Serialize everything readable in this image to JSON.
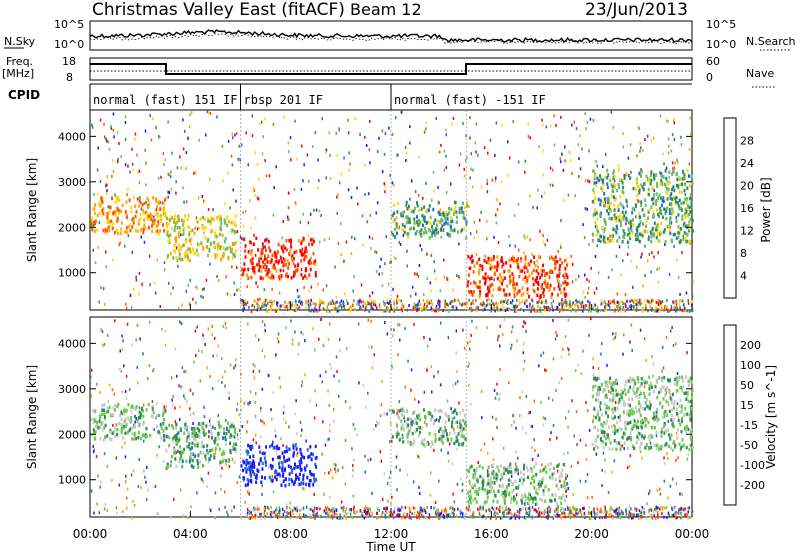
{
  "header": {
    "title": "Christmas Valley East (fitACF)",
    "beam": "Beam 12",
    "date": "23/Jun/2013"
  },
  "panels": {
    "nsky_label": "N.Sky",
    "nsearch_label": "N.Search",
    "nsky_ticks": [
      "10^5",
      "10^0"
    ],
    "nsearch_ticks": [
      "10^5",
      "10^0"
    ],
    "freq_label_1": "Freq.",
    "freq_label_2": "[MHz]",
    "freq_ticks": [
      "18",
      "8"
    ],
    "nave_label": "Nave",
    "nave_ticks": [
      "60",
      "0"
    ],
    "cpid_label": "CPID",
    "cpid_segments": [
      {
        "label": "normal (fast) 151 IF",
        "start": 0,
        "end": 6
      },
      {
        "label": "rbsp 201 IF",
        "start": 6,
        "end": 12
      },
      {
        "label": "normal (fast) -151 IF",
        "start": 12,
        "end": 24
      }
    ]
  },
  "chart_data": [
    {
      "type": "heatmap",
      "name": "power",
      "ylabel": "Slant Range [km]",
      "ylim": [
        180,
        4580
      ],
      "yticks": [
        "1000",
        "2000",
        "3000",
        "4000"
      ],
      "colorbar_label": "Power [dB]",
      "colorbar_ticks": [
        "28",
        "24",
        "20",
        "16",
        "12",
        "8",
        "4"
      ],
      "colors": [
        "#1a1aff",
        "#2266dd",
        "#2e8b57",
        "#66bb66",
        "#ffd700",
        "#ffa500",
        "#ff5500",
        "#ff0000"
      ],
      "regions": [
        {
          "t0": 0.0,
          "t1": 3.0,
          "r0": 1900,
          "r1": 2700,
          "level": 0.7
        },
        {
          "t0": 3.0,
          "t1": 5.8,
          "r0": 1300,
          "r1": 2300,
          "level": 0.55
        },
        {
          "t0": 6.0,
          "t1": 9.0,
          "r0": 900,
          "r1": 1800,
          "level": 0.9
        },
        {
          "t0": 12.0,
          "t1": 15.0,
          "r0": 1800,
          "r1": 2600,
          "level": 0.35
        },
        {
          "t0": 15.0,
          "t1": 19.0,
          "r0": 500,
          "r1": 1400,
          "level": 0.85
        },
        {
          "t0": 20.0,
          "t1": 24.0,
          "r0": 1700,
          "r1": 3300,
          "level": 0.4
        }
      ]
    },
    {
      "type": "heatmap",
      "name": "velocity",
      "ylabel": "Slant Range [km]",
      "ylim": [
        180,
        4580
      ],
      "yticks": [
        "1000",
        "2000",
        "3000",
        "4000"
      ],
      "colorbar_label": "Velocity [m s^-1]",
      "colorbar_ticks": [
        "200",
        "100",
        "50",
        "15",
        "-15",
        "-50",
        "-100",
        "-200"
      ],
      "colors": [
        "#1a1aff",
        "#1e6fd0",
        "#2e8b57",
        "#66cc44",
        "#c8c8c8",
        "#ffa500",
        "#ff6600",
        "#ff0000"
      ],
      "regions": [
        {
          "t0": 0.0,
          "t1": 3.0,
          "r0": 1900,
          "r1": 2700,
          "level": 0.45
        },
        {
          "t0": 3.0,
          "t1": 5.8,
          "r0": 1300,
          "r1": 2300,
          "level": 0.4
        },
        {
          "t0": 6.0,
          "t1": 9.0,
          "r0": 900,
          "r1": 1800,
          "level": 0.05
        },
        {
          "t0": 12.0,
          "t1": 15.0,
          "r0": 1800,
          "r1": 2600,
          "level": 0.45
        },
        {
          "t0": 15.0,
          "t1": 19.0,
          "r0": 500,
          "r1": 1400,
          "level": 0.45
        },
        {
          "t0": 20.0,
          "t1": 24.0,
          "r0": 1700,
          "r1": 3300,
          "level": 0.45
        }
      ]
    }
  ],
  "x_axis": {
    "label": "Time UT",
    "ticks": [
      "00:00",
      "04:00",
      "08:00",
      "12:00",
      "16:00",
      "20:00",
      "00:00"
    ],
    "xlim": [
      0,
      24
    ]
  }
}
